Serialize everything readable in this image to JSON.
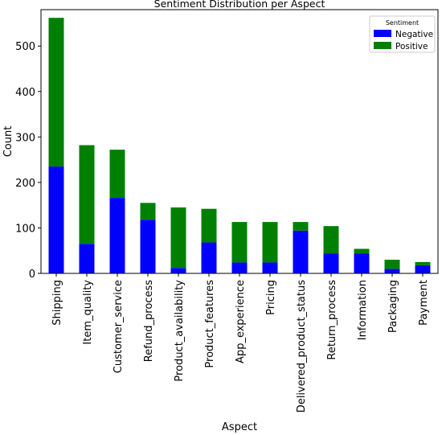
{
  "chart_data": {
    "type": "bar",
    "stacked": true,
    "title": "Sentiment Distribution per Aspect",
    "xlabel": "Aspect",
    "ylabel": "Count",
    "ylim": [
      0,
      580
    ],
    "yticks": [
      0,
      100,
      200,
      300,
      400,
      500
    ],
    "grid": false,
    "legend": {
      "title": "Sentiment",
      "position": "top-right"
    },
    "categories": [
      "Shipping",
      "Item_quality",
      "Customer_service",
      "Refund_process",
      "Product_availability",
      "Product_features",
      "App_experience",
      "Pricing",
      "Delivered_product_status",
      "Return_process",
      "Information",
      "Packaging",
      "Payment"
    ],
    "series": [
      {
        "name": "Negative",
        "color": "#0000ff",
        "values": [
          235,
          65,
          166,
          118,
          12,
          68,
          24,
          24,
          94,
          44,
          44,
          10,
          18
        ]
      },
      {
        "name": "Positive",
        "color": "#008000",
        "values": [
          327,
          217,
          106,
          37,
          133,
          74,
          89,
          89,
          19,
          60,
          10,
          20,
          7
        ]
      }
    ]
  }
}
